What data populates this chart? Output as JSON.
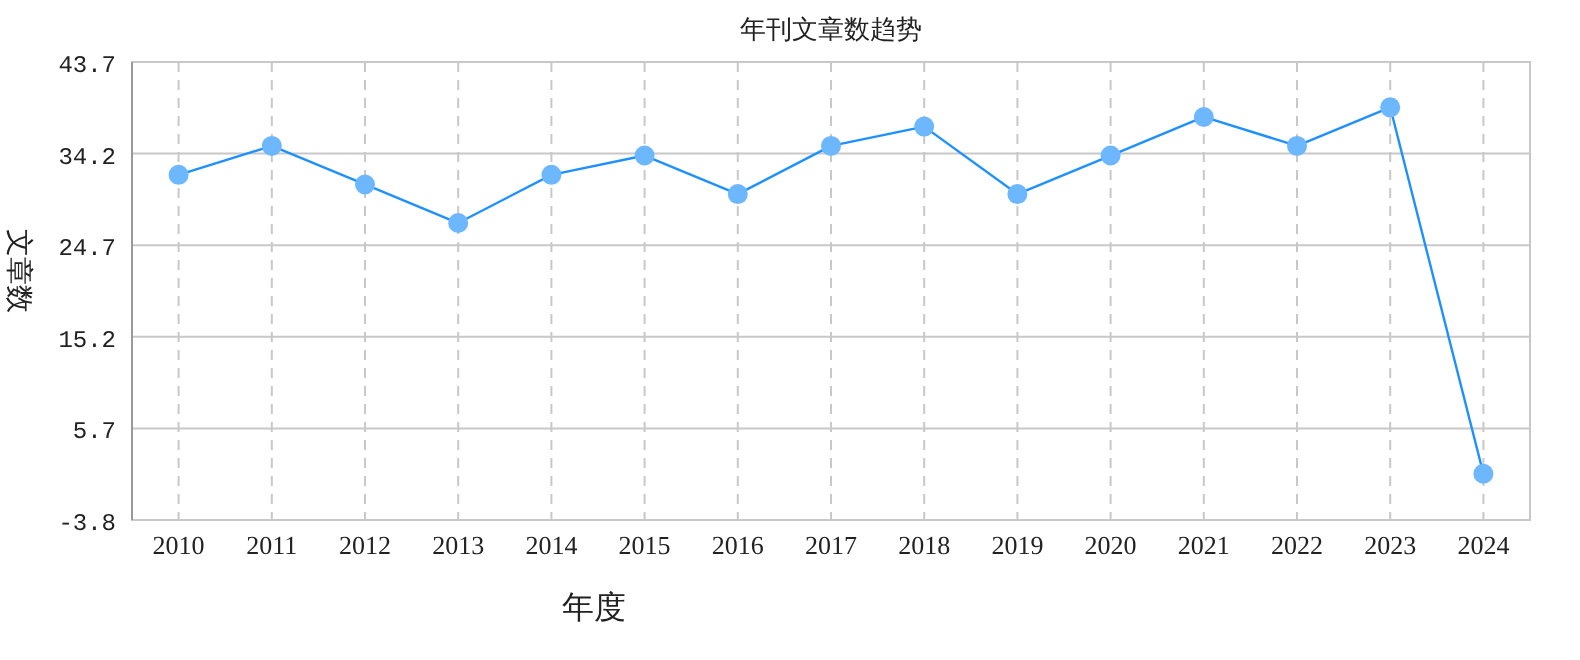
{
  "chart_data": {
    "type": "line",
    "title": "年刊文章数趋势",
    "xlabel": "年度",
    "ylabel": "文章数",
    "categories": [
      "2010",
      "2011",
      "2012",
      "2013",
      "2014",
      "2015",
      "2016",
      "2017",
      "2018",
      "2019",
      "2020",
      "2021",
      "2022",
      "2023",
      "2024"
    ],
    "series": [
      {
        "color": "#1e90ff",
        "values": [
          32,
          35,
          31,
          27,
          32,
          34,
          30,
          35,
          37,
          30,
          34,
          38,
          35,
          39,
          1
        ]
      }
    ],
    "ylim": [
      -3.8,
      43.7
    ],
    "yticks": [
      -3.8,
      5.7,
      15.2,
      24.7,
      34.2,
      43.7
    ],
    "grid": true,
    "marker": "circle",
    "line_style": "solid"
  }
}
